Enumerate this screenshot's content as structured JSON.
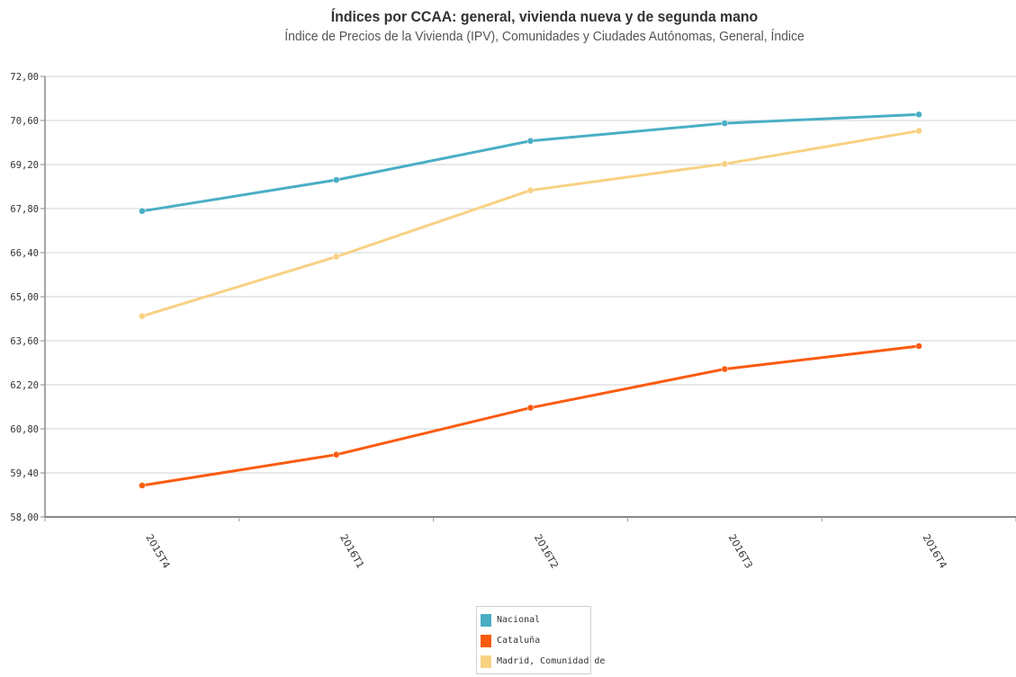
{
  "chart_data": {
    "type": "line",
    "title": "Índices por CCAA: general, vivienda nueva y de segunda mano",
    "subtitle": "Índice de Precios de la Vivienda (IPV), Comunidades y Ciudades Autónomas, General, Índice",
    "xlabel": "",
    "ylabel": "",
    "categories": [
      "2015T4",
      "2016T1",
      "2016T2",
      "2016T3",
      "2016T4"
    ],
    "ylim": [
      58.0,
      72.0
    ],
    "yticks": [
      "58,00",
      "59,40",
      "60,80",
      "62,20",
      "63,60",
      "65,00",
      "66,40",
      "67,80",
      "69,20",
      "70,60",
      "72,00"
    ],
    "grid": true,
    "legend_position": "bottom",
    "series": [
      {
        "name": "Nacional",
        "color": "#4aaec3",
        "values": [
          67.72,
          68.71,
          69.95,
          70.51,
          70.79
        ]
      },
      {
        "name": "Cataluña",
        "color": "#fa5b0f",
        "values": [
          59.0,
          59.98,
          61.47,
          62.7,
          63.43
        ]
      },
      {
        "name": "Madrid, Comunidad de",
        "color": "#f8d183",
        "values": [
          64.38,
          66.27,
          68.38,
          69.22,
          70.27
        ]
      }
    ]
  }
}
